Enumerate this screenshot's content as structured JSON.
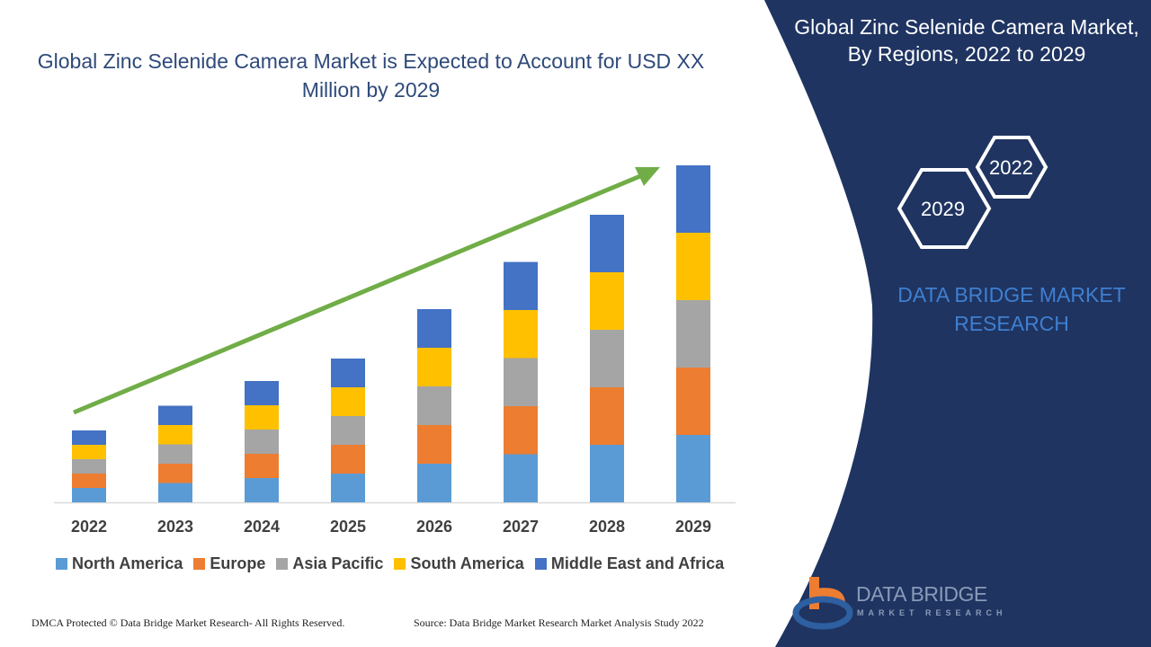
{
  "title": "Global Zinc Selenide Camera Market is Expected to Account for USD XX Million by 2029",
  "side_panel": {
    "title": "Global Zinc Selenide Camera Market, By Regions, 2022 to 2029",
    "hex_labels": [
      "2022",
      "2029"
    ],
    "brand": "DATA BRIDGE MARKET RESEARCH",
    "bg_color": "#1f3461"
  },
  "logo": {
    "name": "DATA BRIDGE",
    "sub": "MARKET RESEARCH"
  },
  "footer": {
    "left": "DMCA Protected © Data Bridge Market Research- All Rights Reserved.",
    "right": "Source: Data Bridge Market Research Market Analysis Study 2022"
  },
  "chart_data": {
    "type": "bar",
    "stacked": true,
    "categories": [
      "2022",
      "2023",
      "2024",
      "2025",
      "2026",
      "2027",
      "2028",
      "2029"
    ],
    "series": [
      {
        "name": "North America",
        "color": "#5b9bd5",
        "values": [
          3.2,
          4.3,
          5.4,
          6.4,
          8.6,
          10.7,
          12.8,
          15
        ]
      },
      {
        "name": "Europe",
        "color": "#ed7d31",
        "values": [
          3.2,
          4.3,
          5.4,
          6.4,
          8.6,
          10.7,
          12.8,
          15
        ]
      },
      {
        "name": "Asia Pacific",
        "color": "#a5a5a5",
        "values": [
          3.2,
          4.3,
          5.4,
          6.4,
          8.6,
          10.7,
          12.8,
          15
        ]
      },
      {
        "name": "South America",
        "color": "#ffc000",
        "values": [
          3.2,
          4.3,
          5.4,
          6.4,
          8.6,
          10.7,
          12.8,
          15
        ]
      },
      {
        "name": "Middle East and Africa",
        "color": "#4472c4",
        "values": [
          3.2,
          4.3,
          5.4,
          6.4,
          8.6,
          10.7,
          12.8,
          15
        ]
      }
    ],
    "ylim": [
      0,
      75
    ],
    "grid": false,
    "legend": "bottom",
    "trend_arrow_color": "#70ad47"
  }
}
